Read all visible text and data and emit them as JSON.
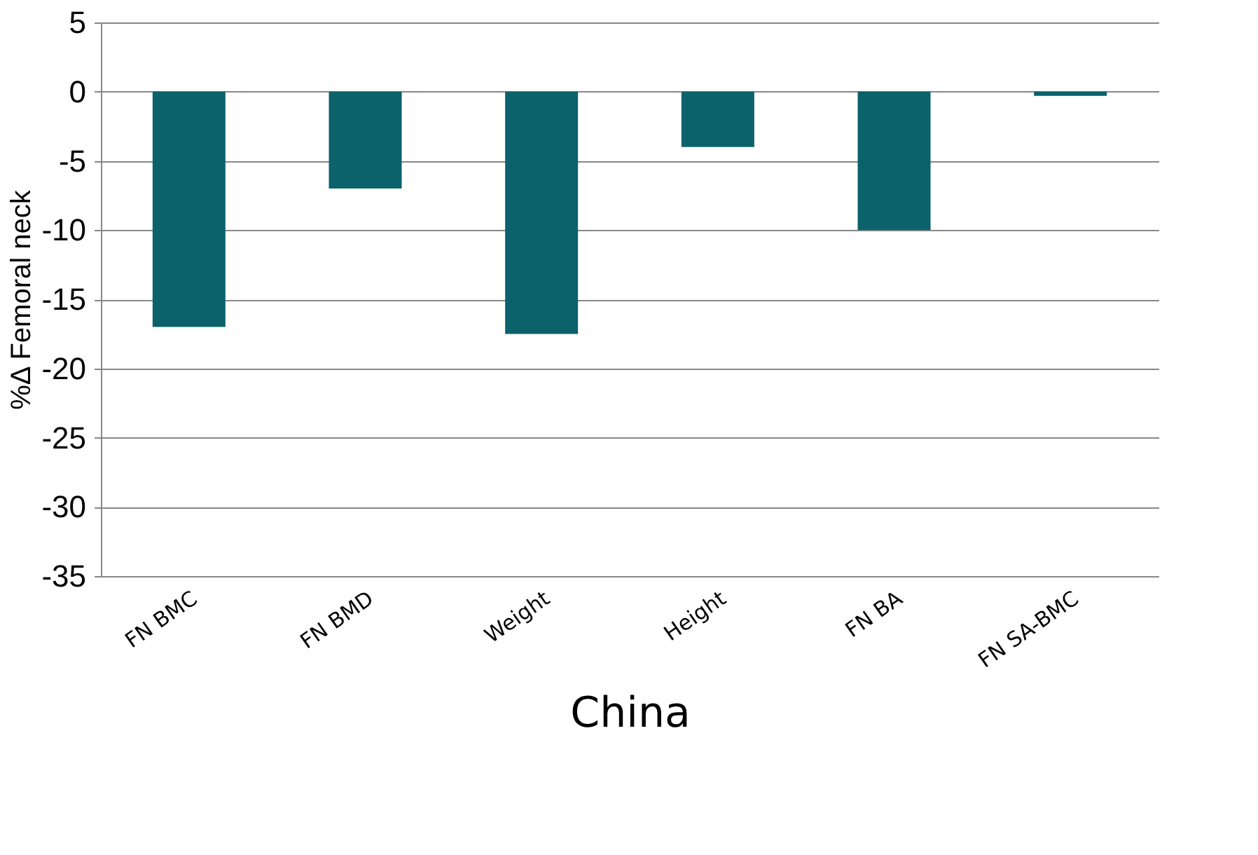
{
  "chart_data": {
    "type": "bar",
    "xlabel": "China",
    "ylabel": "%Δ Femoral neck",
    "categories": [
      "FN BMC",
      "FN BMD",
      "Weight",
      "Height",
      "FN BA",
      "FN SA-BMC"
    ],
    "values": [
      -17,
      -7,
      -17.5,
      -4,
      -10,
      -0.3
    ],
    "color": "#0b626b",
    "ylim": [
      -35,
      5
    ],
    "yticks": [
      -35,
      -30,
      -25,
      -20,
      -15,
      -10,
      -5,
      0,
      5
    ],
    "grid": "y"
  }
}
